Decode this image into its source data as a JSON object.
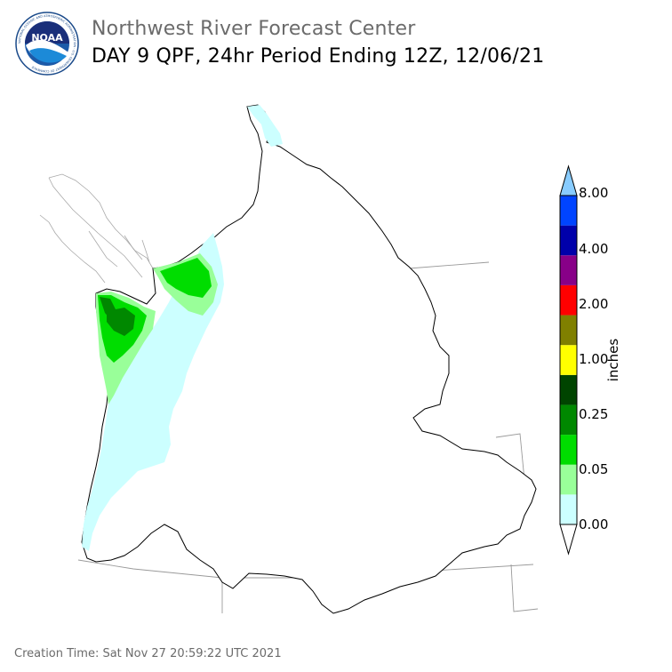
{
  "header": {
    "title": "Northwest River Forecast Center",
    "subtitle": "DAY 9 QPF, 24hr Period Ending 12Z, 12/06/21",
    "logo_text": "NOAA",
    "logo_ring_text": "NATIONAL OCEANIC AND ATMOSPHERIC ADMINISTRATION · U.S. DEPARTMENT OF COMMERCE"
  },
  "colorbar": {
    "units": "inches",
    "ticks": [
      "0.00",
      "0.05",
      "0.25",
      "1.00",
      "2.00",
      "4.00",
      "8.00"
    ],
    "colors": [
      "#ffffff",
      "#ccffff",
      "#99ff99",
      "#00dd00",
      "#008800",
      "#004400",
      "#ffff00",
      "#808000",
      "#ff0000",
      "#880088",
      "#0000aa",
      "#0044ff",
      "#88ccff"
    ]
  },
  "footer": {
    "creation_time": "Creation Time: Sat Nov 27 20:59:22 UTC 2021"
  }
}
